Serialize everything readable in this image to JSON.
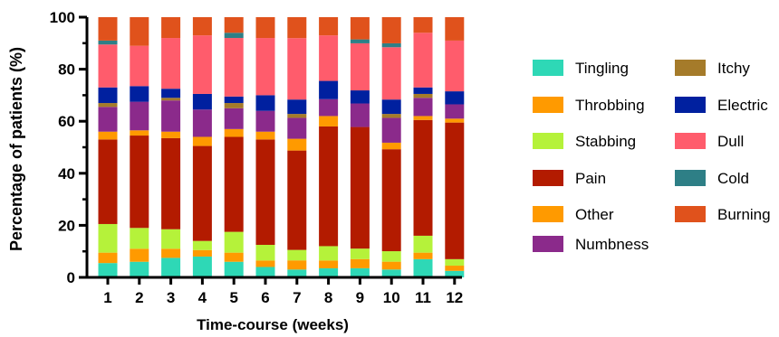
{
  "chart_data": {
    "type": "bar",
    "stacked": true,
    "xlabel": "Time-course  (weeks)",
    "ylabel": "Percentage of patients (%)",
    "ylim": [
      0,
      100
    ],
    "yticks": [
      0,
      20,
      40,
      60,
      80,
      100
    ],
    "categories": [
      "1",
      "2",
      "3",
      "4",
      "5",
      "6",
      "7",
      "8",
      "9",
      "10",
      "11",
      "12"
    ],
    "series": [
      {
        "name": "Tingling",
        "color": "#2ed8b6",
        "values": [
          5.5,
          6.0,
          7.5,
          8.0,
          6.0,
          4.0,
          3.0,
          3.5,
          3.5,
          3.0,
          7.0,
          2.5
        ]
      },
      {
        "name": "Throbbing",
        "color": "#ff9a00",
        "values": [
          4.0,
          5.0,
          3.5,
          2.5,
          3.5,
          2.5,
          3.5,
          3.0,
          3.5,
          3.0,
          2.5,
          2.0
        ]
      },
      {
        "name": "Stabbing",
        "color": "#b5f23a",
        "values": [
          11.0,
          8.0,
          7.5,
          3.5,
          8.0,
          6.0,
          4.0,
          5.5,
          4.0,
          4.0,
          6.5,
          2.5
        ]
      },
      {
        "name": "Pain",
        "color": "#b31b00",
        "values": [
          32.5,
          35.5,
          35.0,
          36.5,
          36.5,
          40.5,
          38.0,
          46.0,
          46.5,
          39.0,
          44.5,
          52.5
        ]
      },
      {
        "name": "Other",
        "color": "#ff9a00",
        "values": [
          3.0,
          2.0,
          2.5,
          3.5,
          3.0,
          3.0,
          4.5,
          4.0,
          0.0,
          2.5,
          1.5,
          1.5
        ]
      },
      {
        "name": "Numbness",
        "color": "#8b2a8b",
        "values": [
          9.5,
          11.0,
          12.0,
          10.5,
          8.0,
          8.0,
          8.0,
          6.5,
          9.0,
          9.5,
          7.0,
          5.5
        ]
      },
      {
        "name": "Itchy",
        "color": "#a57b2a",
        "values": [
          1.5,
          0.0,
          1.0,
          0.0,
          2.0,
          0.0,
          1.5,
          0.0,
          0.0,
          1.5,
          1.5,
          0.0
        ]
      },
      {
        "name": "Electric",
        "color": "#00209f",
        "values": [
          6.0,
          6.0,
          3.5,
          6.0,
          2.5,
          6.0,
          5.5,
          7.0,
          5.0,
          5.5,
          2.5,
          5.0
        ]
      },
      {
        "name": "Dull",
        "color": "#ff5c6c",
        "values": [
          16.5,
          15.5,
          19.5,
          22.5,
          22.5,
          22.0,
          23.5,
          17.5,
          18.0,
          20.0,
          21.0,
          19.5
        ]
      },
      {
        "name": "Cold",
        "color": "#2e7f86",
        "values": [
          1.5,
          0.0,
          0.0,
          0.0,
          2.0,
          0.0,
          0.0,
          0.0,
          1.5,
          1.5,
          0.0,
          0.0
        ]
      },
      {
        "name": "Burning",
        "color": "#e0521c",
        "values": [
          9.0,
          11.0,
          8.0,
          7.0,
          6.0,
          8.0,
          8.0,
          7.0,
          8.5,
          10.0,
          6.0,
          9.0
        ]
      }
    ],
    "legend_columns": [
      [
        "Tingling",
        "Throbbing",
        "Stabbing",
        "Pain",
        "Other",
        "Numbness"
      ],
      [
        "Itchy",
        "Electric",
        "Dull",
        "Cold",
        "Burning"
      ]
    ],
    "legend_position": "right",
    "grid": false
  }
}
